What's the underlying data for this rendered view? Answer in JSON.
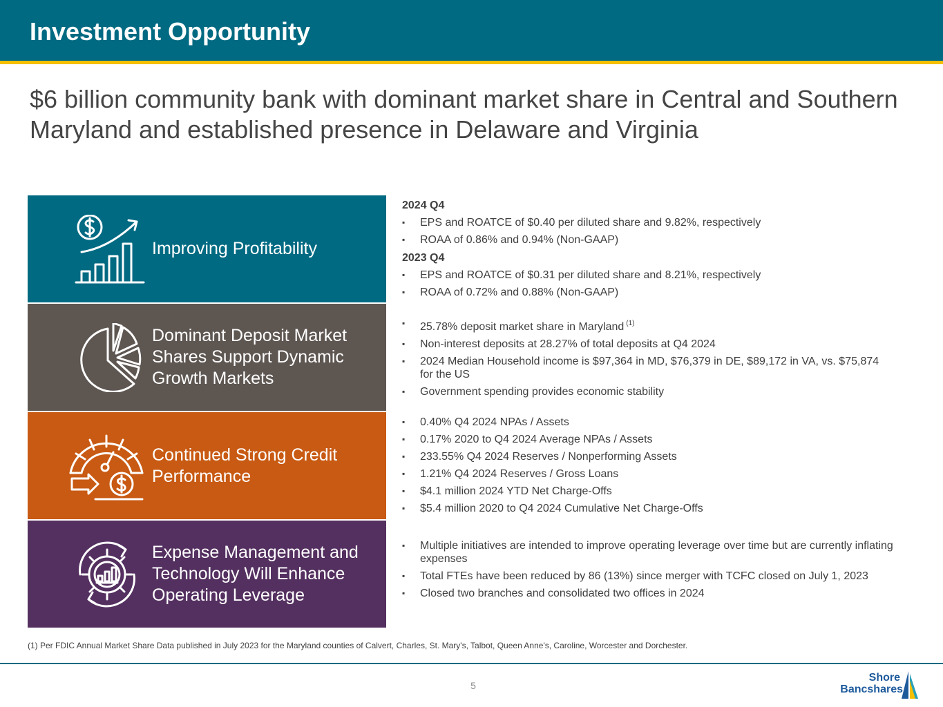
{
  "header": {
    "title": "Investment Opportunity"
  },
  "headline": "$6 billion community bank with dominant market share in Central and Southern Maryland and established presence in Delaware and Virginia",
  "tiles": [
    {
      "label": "Improving Profitability",
      "icon": "profit-growth-icon",
      "color": "#006a82"
    },
    {
      "label": "Dominant Deposit Market Shares Support Dynamic Growth Markets",
      "icon": "pie-chart-icon",
      "color": "#5e5651"
    },
    {
      "label": "Continued Strong Credit Performance",
      "icon": "credit-gauge-icon",
      "color": "#c85a13"
    },
    {
      "label": "Expense Management and Technology Will Enhance Operating Leverage",
      "icon": "gear-chart-icon",
      "color": "#543060"
    }
  ],
  "profitability": {
    "q4_2024": {
      "title": "2024 Q4",
      "bullets": [
        "EPS and ROATCE of $0.40 per diluted share and 9.82%, respectively",
        "ROAA of 0.86% and 0.94% (Non-GAAP)"
      ]
    },
    "q4_2023": {
      "title": "2023 Q4",
      "bullets": [
        "EPS and ROATCE of $0.31 per diluted share and 8.21%, respectively",
        "ROAA of 0.72% and 0.88% (Non-GAAP)"
      ]
    }
  },
  "deposits": {
    "bullets": [
      "25.78% deposit market share in Maryland",
      "Non-interest deposits at 28.27% of total deposits at Q4 2024",
      "2024 Median Household income is $97,364 in MD, $76,379 in DE, $89,172 in VA, vs. $75,874 for the US",
      "Government spending provides economic stability"
    ],
    "footnote_ref": "(1)"
  },
  "credit": {
    "bullets": [
      "0.40% Q4 2024 NPAs / Assets",
      "0.17% 2020 to Q4 2024 Average NPAs / Assets",
      "233.55% Q4 2024 Reserves / Nonperforming Assets",
      "1.21% Q4 2024 Reserves / Gross Loans",
      "$4.1 million 2024 YTD Net Charge-Offs",
      "$5.4 million 2020 to Q4 2024 Cumulative Net Charge-Offs"
    ]
  },
  "expense": {
    "bullets": [
      "Multiple initiatives are intended to improve operating leverage over time but are currently inflating expenses",
      "Total FTEs have been reduced by 86 (13%) since merger with TCFC closed on July 1, 2023",
      "Closed two branches and consolidated two offices in 2024"
    ]
  },
  "footnote": "(1) Per FDIC Annual Market Share Data published in July 2023 for the Maryland counties of Calvert, Charles, St. Mary's, Talbot, Queen Anne's, Caroline, Worcester and Dorchester.",
  "page_number": "5",
  "logo": {
    "line1": "Shore",
    "line2": "Bancshares"
  },
  "colors": {
    "header": "#006a82",
    "accent": "#f5c000",
    "text": "#3f3f3f"
  }
}
